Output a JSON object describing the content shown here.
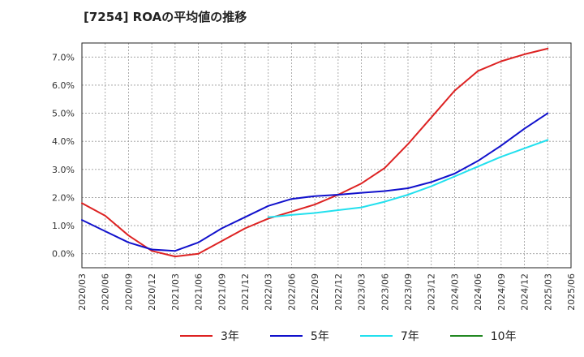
{
  "chart_data": {
    "type": "line",
    "title": "[7254]  ROAの平均値の推移",
    "x": [
      "2020/03",
      "2020/06",
      "2020/09",
      "2020/12",
      "2021/03",
      "2021/06",
      "2021/09",
      "2021/12",
      "2022/03",
      "2022/06",
      "2022/09",
      "2022/12",
      "2023/03",
      "2023/06",
      "2023/09",
      "2023/12",
      "2024/03",
      "2024/06",
      "2024/09",
      "2024/12",
      "2025/03",
      "2025/06"
    ],
    "yticks": [
      "0.0%",
      "1.0%",
      "2.0%",
      "3.0%",
      "4.0%",
      "5.0%",
      "6.0%",
      "7.0%"
    ],
    "ylim": [
      -0.5,
      7.5
    ],
    "grid": true,
    "legend_position": "bottom",
    "series": [
      {
        "name": "3年",
        "color": "#dd2222",
        "values": [
          1.8,
          1.35,
          0.65,
          0.1,
          -0.1,
          0.0,
          0.45,
          0.9,
          1.25,
          1.5,
          1.75,
          2.1,
          2.5,
          3.05,
          3.9,
          4.85,
          5.8,
          6.5,
          6.85,
          7.1,
          7.3,
          null
        ]
      },
      {
        "name": "5年",
        "color": "#1111cc",
        "values": [
          1.2,
          0.8,
          0.4,
          0.15,
          0.1,
          0.4,
          0.9,
          1.3,
          1.7,
          1.95,
          2.05,
          2.1,
          2.17,
          2.23,
          2.33,
          2.55,
          2.85,
          3.3,
          3.85,
          4.45,
          5.0,
          null
        ]
      },
      {
        "name": "7年",
        "color": "#22e0ee",
        "values": [
          null,
          null,
          null,
          null,
          null,
          null,
          null,
          null,
          1.3,
          1.38,
          1.45,
          1.55,
          1.65,
          1.85,
          2.1,
          2.4,
          2.75,
          3.1,
          3.45,
          3.75,
          4.05,
          null
        ]
      },
      {
        "name": "10年",
        "color": "#228822",
        "values": [
          null,
          null,
          null,
          null,
          null,
          null,
          null,
          null,
          null,
          null,
          null,
          null,
          null,
          null,
          null,
          null,
          null,
          null,
          null,
          null,
          null,
          null
        ]
      }
    ]
  }
}
